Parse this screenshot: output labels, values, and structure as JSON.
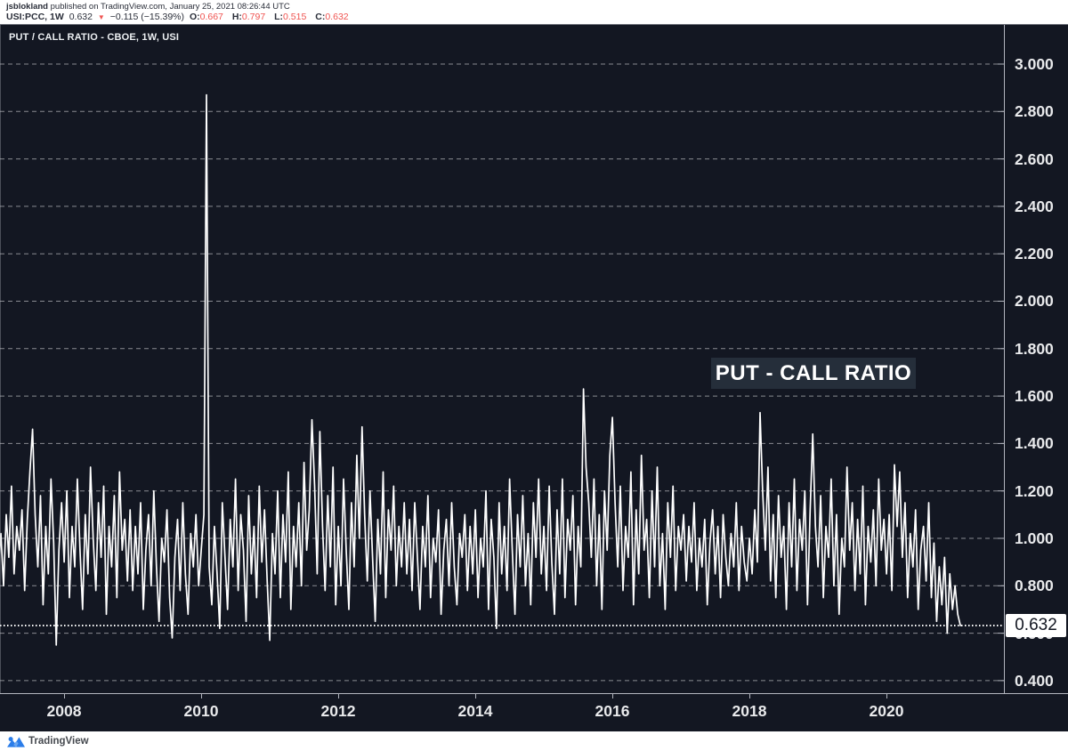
{
  "header": {
    "author": "jsblokland",
    "published_text": "published on TradingView.com, January 25, 2021 08:26:44 UTC",
    "symbol": "USI:PCC, 1W",
    "last_price": "0.632",
    "direction_icon": "down-triangle-icon",
    "direction_glyph": "▼",
    "change_text": "−0.115 (−15.39%)",
    "ohlc": [
      {
        "label": "O:",
        "value": "0.667"
      },
      {
        "label": "H:",
        "value": "0.797"
      },
      {
        "label": "L:",
        "value": "0.515"
      },
      {
        "label": "C:",
        "value": "0.632"
      }
    ]
  },
  "chart": {
    "title": "PUT / CALL RATIO - CBOE, 1W, USI",
    "annotation": "PUT - CALL RATIO",
    "price_badge": "0.632",
    "colors": {
      "background": "#131722",
      "series_line": "#ffffff",
      "grid": "rgba(255,255,255,0.5)",
      "negative_red": "#ef5350",
      "badge_bg": "#ffffff",
      "badge_text": "#131722",
      "axis_line": "#b2b5be",
      "logo_blue": "#2b7de9"
    }
  },
  "chart_data": {
    "type": "line",
    "title": "PUT / CALL RATIO - CBOE, 1W, USI",
    "xlabel": "",
    "ylabel": "",
    "legend": "none",
    "grid": "horizontal-dashed",
    "xlim": [
      2007.065,
      2021.714
    ],
    "ylim": [
      0.347,
      3.165
    ],
    "x_ticks": [
      {
        "year": 2008,
        "label": "2008"
      },
      {
        "year": 2010,
        "label": "2010"
      },
      {
        "year": 2012,
        "label": "2012"
      },
      {
        "year": 2014,
        "label": "2014"
      },
      {
        "year": 2016,
        "label": "2016"
      },
      {
        "year": 2018,
        "label": "2018"
      },
      {
        "year": 2020,
        "label": "2020"
      }
    ],
    "y_ticks": [
      {
        "value": 3.0,
        "label": "3.000"
      },
      {
        "value": 2.8,
        "label": "2.800"
      },
      {
        "value": 2.6,
        "label": "2.600"
      },
      {
        "value": 2.4,
        "label": "2.400"
      },
      {
        "value": 2.2,
        "label": "2.200"
      },
      {
        "value": 2.0,
        "label": "2.000"
      },
      {
        "value": 1.8,
        "label": "1.800"
      },
      {
        "value": 1.6,
        "label": "1.600"
      },
      {
        "value": 1.4,
        "label": "1.400"
      },
      {
        "value": 1.2,
        "label": "1.200"
      },
      {
        "value": 1.0,
        "label": "1.000"
      },
      {
        "value": 0.8,
        "label": "0.800"
      },
      {
        "value": 0.6,
        "label": "0.600"
      },
      {
        "value": 0.4,
        "label": "0.400"
      }
    ],
    "last_value": 0.632,
    "last_value_label": "0.632",
    "x_start_year": 2007.04,
    "x_step_years": 0.038461538,
    "values": [
      0.88,
      1.02,
      0.8,
      1.1,
      0.92,
      1.22,
      0.85,
      1.05,
      0.95,
      1.12,
      0.78,
      1.08,
      1.28,
      1.46,
      1.1,
      0.88,
      1.18,
      0.72,
      1.05,
      0.85,
      1.25,
      0.98,
      0.55,
      0.95,
      1.15,
      0.9,
      1.2,
      0.75,
      1.05,
      0.88,
      1.25,
      0.95,
      0.7,
      1.1,
      0.85,
      1.3,
      1.0,
      0.78,
      1.15,
      0.92,
      1.22,
      0.68,
      1.05,
      0.88,
      1.18,
      0.75,
      1.28,
      0.95,
      1.08,
      0.82,
      1.12,
      0.78,
      1.05,
      0.85,
      1.15,
      0.7,
      0.95,
      1.1,
      0.8,
      1.2,
      0.88,
      0.65,
      1.0,
      0.9,
      1.12,
      0.75,
      0.58,
      0.92,
      1.08,
      0.78,
      1.15,
      0.85,
      0.68,
      1.02,
      0.88,
      1.1,
      0.8,
      0.95,
      1.1,
      2.87,
      0.88,
      0.72,
      1.05,
      0.85,
      0.62,
      1.15,
      0.92,
      0.7,
      1.08,
      0.88,
      1.25,
      0.78,
      1.1,
      0.95,
      0.65,
      1.18,
      0.85,
      1.05,
      0.75,
      1.22,
      0.9,
      1.12,
      0.82,
      0.57,
      1.02,
      0.85,
      1.2,
      0.75,
      1.1,
      0.9,
      1.28,
      0.7,
      1.05,
      0.88,
      1.15,
      0.8,
      1.32,
      0.95,
      1.12,
      1.5,
      1.22,
      0.85,
      1.45,
      1.05,
      0.78,
      1.18,
      0.88,
      1.3,
      0.72,
      1.05,
      0.8,
      1.25,
      0.95,
      0.7,
      1.15,
      0.88,
      1.35,
      1.0,
      1.47,
      1.1,
      0.82,
      1.2,
      0.92,
      0.65,
      1.08,
      0.85,
      1.28,
      0.75,
      1.12,
      0.95,
      1.22,
      0.8,
      1.05,
      0.88,
      1.15,
      0.85,
      1.08,
      0.78,
      1.15,
      0.92,
      0.7,
      1.05,
      0.88,
      1.18,
      0.75,
      1.0,
      0.9,
      1.12,
      0.68,
      0.95,
      1.08,
      0.8,
      1.15,
      0.88,
      0.72,
      1.02,
      0.92,
      1.1,
      0.78,
      1.05,
      0.85,
      1.12,
      0.75,
      1.0,
      0.88,
      1.2,
      0.7,
      1.08,
      0.92,
      0.62,
      1.15,
      0.85,
      1.05,
      0.78,
      1.25,
      0.95,
      0.68,
      1.1,
      0.88,
      1.18,
      0.8,
      1.02,
      0.72,
      1.15,
      0.92,
      1.25,
      0.85,
      1.05,
      0.78,
      1.22,
      0.9,
      0.68,
      1.12,
      0.85,
      1.25,
      0.75,
      1.08,
      0.95,
      1.18,
      0.72,
      1.05,
      0.88,
      1.63,
      1.3,
      1.15,
      0.92,
      1.25,
      0.8,
      1.1,
      0.7,
      1.2,
      0.95,
      1.35,
      1.51,
      1.15,
      0.88,
      1.22,
      0.78,
      1.05,
      0.92,
      1.28,
      0.72,
      1.12,
      0.85,
      1.35,
      0.95,
      1.08,
      0.75,
      1.2,
      0.88,
      1.3,
      0.8,
      1.02,
      0.7,
      1.15,
      0.92,
      1.22,
      0.78,
      1.05,
      0.95,
      1.1,
      0.82,
      1.05,
      0.9,
      1.15,
      0.78,
      1.0,
      0.88,
      1.08,
      0.72,
      0.98,
      1.12,
      0.85,
      1.05,
      0.75,
      1.1,
      0.92,
      0.8,
      1.02,
      0.88,
      1.15,
      0.78,
      1.05,
      0.9,
      0.82,
      1.0,
      0.85,
      1.12,
      0.9,
      1.53,
      1.2,
      0.95,
      1.3,
      0.82,
      1.1,
      0.75,
      1.18,
      0.92,
      1.05,
      0.7,
      1.15,
      0.88,
      1.25,
      0.78,
      1.08,
      0.95,
      1.2,
      0.72,
      1.12,
      1.44,
      1.05,
      0.88,
      1.18,
      0.75,
      1.05,
      0.92,
      1.25,
      0.8,
      1.1,
      0.68,
      1.0,
      0.88,
      1.3,
      0.95,
      1.15,
      0.78,
      1.08,
      0.85,
      1.22,
      0.72,
      1.05,
      0.9,
      1.12,
      0.8,
      1.25,
      0.95,
      1.08,
      0.85,
      1.1,
      0.78,
      1.31,
      1.05,
      1.28,
      0.92,
      1.15,
      0.75,
      1.02,
      0.88,
      1.12,
      0.7,
      0.95,
      1.05,
      0.82,
      1.15,
      0.75,
      0.98,
      0.65,
      0.88,
      0.72,
      0.92,
      0.6,
      0.85,
      0.7,
      0.8,
      0.68,
      0.632
    ]
  },
  "footer": {
    "brand": "TradingView",
    "logo_icon": "tradingview-logo-icon"
  }
}
